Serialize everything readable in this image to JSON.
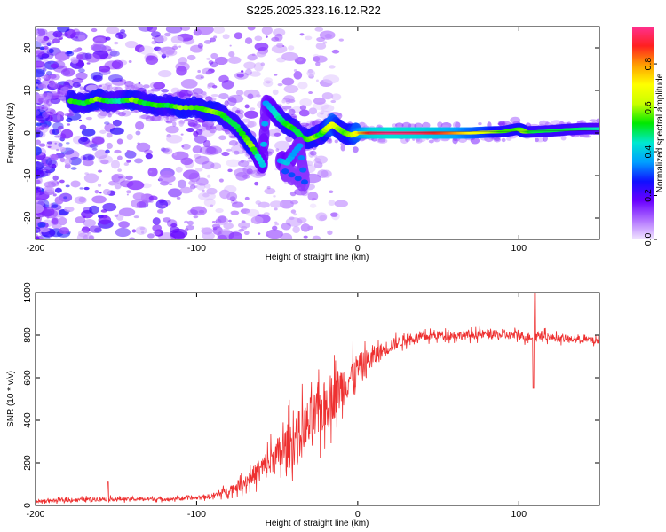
{
  "title": "S225.2025.323.16.12.R22",
  "chart_data": [
    {
      "type": "heatmap",
      "id": "spectrogram",
      "xlabel": "Height of straight line (km)",
      "ylabel": "Frequency (Hz)",
      "xlim": [
        -200,
        150
      ],
      "ylim": [
        -25,
        25
      ],
      "xticks": [
        -200,
        -100,
        0,
        100
      ],
      "yticks": [
        -20,
        -10,
        0,
        10,
        20
      ],
      "colorbar": {
        "label": "Normalized spectral amplitude",
        "range": [
          0,
          0.97
        ],
        "ticks": [
          0.0,
          0.2,
          0.4,
          0.6,
          0.8
        ],
        "tick_labels": [
          "0.0",
          "0.2",
          "0.4",
          "0.6",
          "0.8"
        ],
        "colormap": [
          "#f2e6ff",
          "#b070ff",
          "#6a00ff",
          "#1010ff",
          "#00a0ff",
          "#00e8d0",
          "#00e800",
          "#c8ff00",
          "#ffff00",
          "#ffa000",
          "#ff2020",
          "#ff3090"
        ]
      },
      "main_ridge": [
        {
          "x": -178,
          "y": 7.5,
          "v": 0.55
        },
        {
          "x": -170,
          "y": 7.0,
          "v": 0.5
        },
        {
          "x": -162,
          "y": 8.0,
          "v": 0.6
        },
        {
          "x": -155,
          "y": 7.5,
          "v": 0.5
        },
        {
          "x": -148,
          "y": 7.5,
          "v": 0.45
        },
        {
          "x": -140,
          "y": 7.8,
          "v": 0.6
        },
        {
          "x": -132,
          "y": 7.0,
          "v": 0.5
        },
        {
          "x": -125,
          "y": 6.5,
          "v": 0.55
        },
        {
          "x": -118,
          "y": 6.5,
          "v": 0.5
        },
        {
          "x": -110,
          "y": 6.0,
          "v": 0.6
        },
        {
          "x": -100,
          "y": 6.0,
          "v": 0.55
        },
        {
          "x": -95,
          "y": 5.5,
          "v": 0.55
        },
        {
          "x": -90,
          "y": 5.0,
          "v": 0.6
        },
        {
          "x": -85,
          "y": 4.5,
          "v": 0.55
        },
        {
          "x": -80,
          "y": 3.0,
          "v": 0.5
        },
        {
          "x": -75,
          "y": 1.5,
          "v": 0.5
        },
        {
          "x": -70,
          "y": -1.0,
          "v": 0.55
        },
        {
          "x": -66,
          "y": -3.0,
          "v": 0.6
        },
        {
          "x": -62,
          "y": -5.5,
          "v": 0.45
        },
        {
          "x": -59,
          "y": -7.5,
          "v": 0.4
        },
        {
          "x": -57,
          "y": 7.0,
          "v": 0.35
        },
        {
          "x": -53,
          "y": 5.5,
          "v": 0.4
        },
        {
          "x": -50,
          "y": 4.0,
          "v": 0.45
        },
        {
          "x": -46,
          "y": 2.5,
          "v": 0.5
        },
        {
          "x": -42,
          "y": 1.5,
          "v": 0.55
        },
        {
          "x": -38,
          "y": 0.5,
          "v": 0.5
        },
        {
          "x": -35,
          "y": -1.0,
          "v": 0.5
        },
        {
          "x": -31,
          "y": -1.5,
          "v": 0.55
        },
        {
          "x": -27,
          "y": -1.0,
          "v": 0.6
        },
        {
          "x": -23,
          "y": -0.3,
          "v": 0.5
        },
        {
          "x": -20,
          "y": 0.8,
          "v": 0.6
        },
        {
          "x": -16,
          "y": 2.0,
          "v": 0.7
        },
        {
          "x": -12,
          "y": 1.0,
          "v": 0.6
        },
        {
          "x": -8,
          "y": 0.0,
          "v": 0.55
        },
        {
          "x": -4,
          "y": -0.5,
          "v": 0.6
        },
        {
          "x": 0,
          "y": 0.0,
          "v": 0.7
        },
        {
          "x": 10,
          "y": 0.0,
          "v": 0.92
        },
        {
          "x": 20,
          "y": 0.0,
          "v": 0.96
        },
        {
          "x": 30,
          "y": 0.0,
          "v": 0.95
        },
        {
          "x": 40,
          "y": 0.0,
          "v": 0.93
        },
        {
          "x": 50,
          "y": 0.0,
          "v": 0.88
        },
        {
          "x": 60,
          "y": 0.0,
          "v": 0.82
        },
        {
          "x": 70,
          "y": 0.0,
          "v": 0.72
        },
        {
          "x": 80,
          "y": 0.2,
          "v": 0.65
        },
        {
          "x": 90,
          "y": 0.3,
          "v": 0.55
        },
        {
          "x": 100,
          "y": 1.0,
          "v": 0.55
        },
        {
          "x": 104,
          "y": 0.2,
          "v": 0.6
        },
        {
          "x": 110,
          "y": 0.3,
          "v": 0.5
        },
        {
          "x": 120,
          "y": 0.5,
          "v": 0.5
        },
        {
          "x": 130,
          "y": 0.8,
          "v": 0.5
        },
        {
          "x": 140,
          "y": 1.0,
          "v": 0.48
        },
        {
          "x": 150,
          "y": 1.0,
          "v": 0.45
        }
      ],
      "secondary_ridge": [
        {
          "x": -48,
          "y": -6.5,
          "v": 0.35
        },
        {
          "x": -44,
          "y": -7.0,
          "v": 0.4
        },
        {
          "x": -40,
          "y": -5.0,
          "v": 0.35
        },
        {
          "x": -36,
          "y": -3.0,
          "v": 0.35
        },
        {
          "x": -33,
          "y": -11.5,
          "v": 0.3
        },
        {
          "x": -45,
          "y": -9.0,
          "v": 0.3
        }
      ]
    },
    {
      "type": "line",
      "id": "snr",
      "xlabel": "Height of straight line (km)",
      "ylabel": "SNR (10 * v/v)",
      "xlim": [
        -200,
        150
      ],
      "ylim": [
        0,
        1000
      ],
      "xticks": [
        -200,
        -100,
        0,
        100
      ],
      "yticks": [
        0,
        200,
        400,
        600,
        800,
        1000
      ],
      "color": "#ee3030",
      "series": [
        {
          "name": "SNR",
          "x": [
            -200,
            -180,
            -160,
            -140,
            -120,
            -100,
            -90,
            -80,
            -70,
            -60,
            -50,
            -40,
            -30,
            -20,
            -10,
            0,
            10,
            20,
            30,
            40,
            50,
            60,
            70,
            80,
            90,
            100,
            105,
            110,
            115,
            120,
            130,
            140,
            150
          ],
          "y": [
            20,
            25,
            30,
            30,
            30,
            35,
            45,
            70,
            110,
            170,
            230,
            300,
            380,
            470,
            560,
            640,
            700,
            750,
            780,
            790,
            800,
            800,
            800,
            805,
            800,
            800,
            790,
            800,
            800,
            790,
            780,
            780,
            770
          ],
          "spread": [
            8,
            10,
            12,
            10,
            10,
            10,
            15,
            25,
            40,
            70,
            110,
            150,
            160,
            150,
            130,
            90,
            60,
            40,
            30,
            25,
            25,
            25,
            25,
            25,
            25,
            25,
            25,
            25,
            25,
            22,
            20,
            20,
            20
          ]
        }
      ],
      "spikes": [
        {
          "x": 110,
          "y": 1020
        },
        {
          "x": 109,
          "y": 550
        }
      ]
    }
  ]
}
